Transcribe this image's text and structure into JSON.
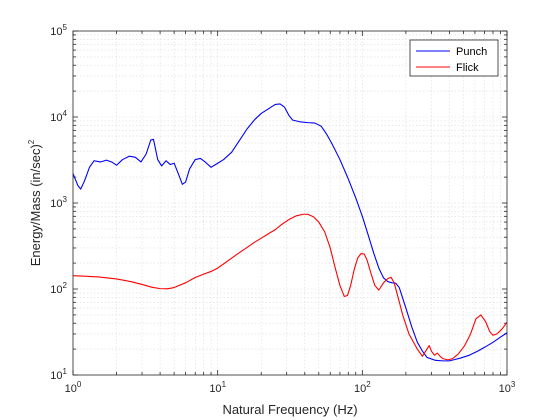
{
  "chart_data": {
    "type": "line",
    "title": "",
    "xlabel": "Natural Frequency (Hz)",
    "ylabel": "Energy/Mass (in/sec)",
    "ylabel_superscript": "2",
    "xscale": "log",
    "yscale": "log",
    "xlim": [
      1,
      1000
    ],
    "ylim": [
      10,
      100000
    ],
    "grid": true,
    "legend_position": "top-right",
    "x_ticks": [
      {
        "base": "10",
        "exp": "0"
      },
      {
        "base": "10",
        "exp": "1"
      },
      {
        "base": "10",
        "exp": "2"
      },
      {
        "base": "10",
        "exp": "3"
      }
    ],
    "y_ticks": [
      {
        "base": "10",
        "exp": "1"
      },
      {
        "base": "10",
        "exp": "2"
      },
      {
        "base": "10",
        "exp": "3"
      },
      {
        "base": "10",
        "exp": "4"
      },
      {
        "base": "10",
        "exp": "5"
      }
    ],
    "series": [
      {
        "name": "Punch",
        "color": "#0000ff",
        "points": [
          [
            1.0,
            2200
          ],
          [
            1.08,
            1600
          ],
          [
            1.13,
            1450
          ],
          [
            1.2,
            1800
          ],
          [
            1.3,
            2600
          ],
          [
            1.4,
            3100
          ],
          [
            1.55,
            3000
          ],
          [
            1.7,
            3150
          ],
          [
            1.85,
            3000
          ],
          [
            2.0,
            2750
          ],
          [
            2.2,
            3200
          ],
          [
            2.45,
            3500
          ],
          [
            2.7,
            3400
          ],
          [
            2.95,
            3000
          ],
          [
            3.2,
            3700
          ],
          [
            3.45,
            5400
          ],
          [
            3.6,
            5500
          ],
          [
            3.85,
            3200
          ],
          [
            4.1,
            2700
          ],
          [
            4.4,
            3100
          ],
          [
            4.7,
            2800
          ],
          [
            5.0,
            2900
          ],
          [
            5.4,
            2100
          ],
          [
            5.7,
            1650
          ],
          [
            6.0,
            1750
          ],
          [
            6.4,
            2500
          ],
          [
            7.0,
            3200
          ],
          [
            7.6,
            3300
          ],
          [
            8.2,
            3000
          ],
          [
            9.0,
            2600
          ],
          [
            10.0,
            2900
          ],
          [
            11.0,
            3200
          ],
          [
            12.5,
            3900
          ],
          [
            14.0,
            5200
          ],
          [
            16.0,
            7300
          ],
          [
            18.0,
            9300
          ],
          [
            20.0,
            11000
          ],
          [
            22.5,
            12500
          ],
          [
            25.0,
            14000
          ],
          [
            27.0,
            14200
          ],
          [
            29.0,
            13000
          ],
          [
            31.0,
            10500
          ],
          [
            33.0,
            9200
          ],
          [
            37.0,
            8800
          ],
          [
            42.0,
            8600
          ],
          [
            47.0,
            8500
          ],
          [
            52.0,
            7800
          ],
          [
            57.0,
            6200
          ],
          [
            62.0,
            4800
          ],
          [
            70.0,
            3200
          ],
          [
            80.0,
            1900
          ],
          [
            90.0,
            1150
          ],
          [
            100.0,
            700
          ],
          [
            110.0,
            420
          ],
          [
            120.0,
            260
          ],
          [
            130.0,
            175
          ],
          [
            140.0,
            135
          ],
          [
            150.0,
            122
          ],
          [
            160.0,
            118
          ],
          [
            170.0,
            117
          ],
          [
            180.0,
            104
          ],
          [
            200.0,
            60
          ],
          [
            220.0,
            36
          ],
          [
            240.0,
            24
          ],
          [
            260.0,
            19
          ],
          [
            280.0,
            16
          ],
          [
            320.0,
            14.8
          ],
          [
            360.0,
            14.6
          ],
          [
            400.0,
            14.6
          ],
          [
            440.0,
            15.2
          ],
          [
            480.0,
            15.8
          ],
          [
            550.0,
            17.0
          ],
          [
            630.0,
            19.0
          ],
          [
            700.0,
            21.0
          ],
          [
            800.0,
            24.0
          ],
          [
            900.0,
            27.5
          ],
          [
            1000.0,
            31.0
          ]
        ]
      },
      {
        "name": "Flick",
        "color": "#ff0000",
        "points": [
          [
            1.0,
            143
          ],
          [
            1.2,
            141
          ],
          [
            1.5,
            138
          ],
          [
            2.0,
            131
          ],
          [
            2.5,
            122
          ],
          [
            3.0,
            113
          ],
          [
            3.5,
            105
          ],
          [
            4.0,
            101
          ],
          [
            4.5,
            100.5
          ],
          [
            5.0,
            104
          ],
          [
            6.0,
            118
          ],
          [
            7.0,
            136
          ],
          [
            8.0,
            149
          ],
          [
            9.0,
            160
          ],
          [
            10.0,
            175
          ],
          [
            11.0,
            196
          ],
          [
            12.0,
            218
          ],
          [
            14.0,
            262
          ],
          [
            16.0,
            305
          ],
          [
            18.0,
            350
          ],
          [
            20.0,
            390
          ],
          [
            22.0,
            430
          ],
          [
            25.0,
            490
          ],
          [
            28.0,
            570
          ],
          [
            31.0,
            640
          ],
          [
            35.0,
            710
          ],
          [
            39.0,
            740
          ],
          [
            42.0,
            740
          ],
          [
            46.0,
            690
          ],
          [
            50.0,
            600
          ],
          [
            55.0,
            460
          ],
          [
            60.0,
            300
          ],
          [
            65.0,
            175
          ],
          [
            70.0,
            110
          ],
          [
            75.0,
            82
          ],
          [
            79.0,
            84
          ],
          [
            83.0,
            110
          ],
          [
            88.0,
            170
          ],
          [
            93.0,
            230
          ],
          [
            98.0,
            258
          ],
          [
            103.0,
            255
          ],
          [
            108.0,
            215
          ],
          [
            115.0,
            150
          ],
          [
            122.0,
            110
          ],
          [
            130.0,
            97
          ],
          [
            140.0,
            118
          ],
          [
            150.0,
            132
          ],
          [
            158.0,
            137
          ],
          [
            166.0,
            118
          ],
          [
            175.0,
            85
          ],
          [
            190.0,
            50
          ],
          [
            210.0,
            30
          ],
          [
            240.0,
            20
          ],
          [
            260.0,
            16.5
          ],
          [
            280.0,
            20
          ],
          [
            290.0,
            22
          ],
          [
            300.0,
            19
          ],
          [
            315.0,
            17
          ],
          [
            330.0,
            18
          ],
          [
            345.0,
            16.5
          ],
          [
            360.0,
            15.5
          ],
          [
            390.0,
            15.0
          ],
          [
            420.0,
            15.5
          ],
          [
            460.0,
            17.5
          ],
          [
            510.0,
            22
          ],
          [
            560.0,
            30
          ],
          [
            610.0,
            45
          ],
          [
            660.0,
            50
          ],
          [
            710.0,
            42
          ],
          [
            760.0,
            32
          ],
          [
            800.0,
            29
          ],
          [
            850.0,
            30
          ],
          [
            920.0,
            34
          ],
          [
            1000.0,
            41
          ]
        ]
      }
    ]
  }
}
